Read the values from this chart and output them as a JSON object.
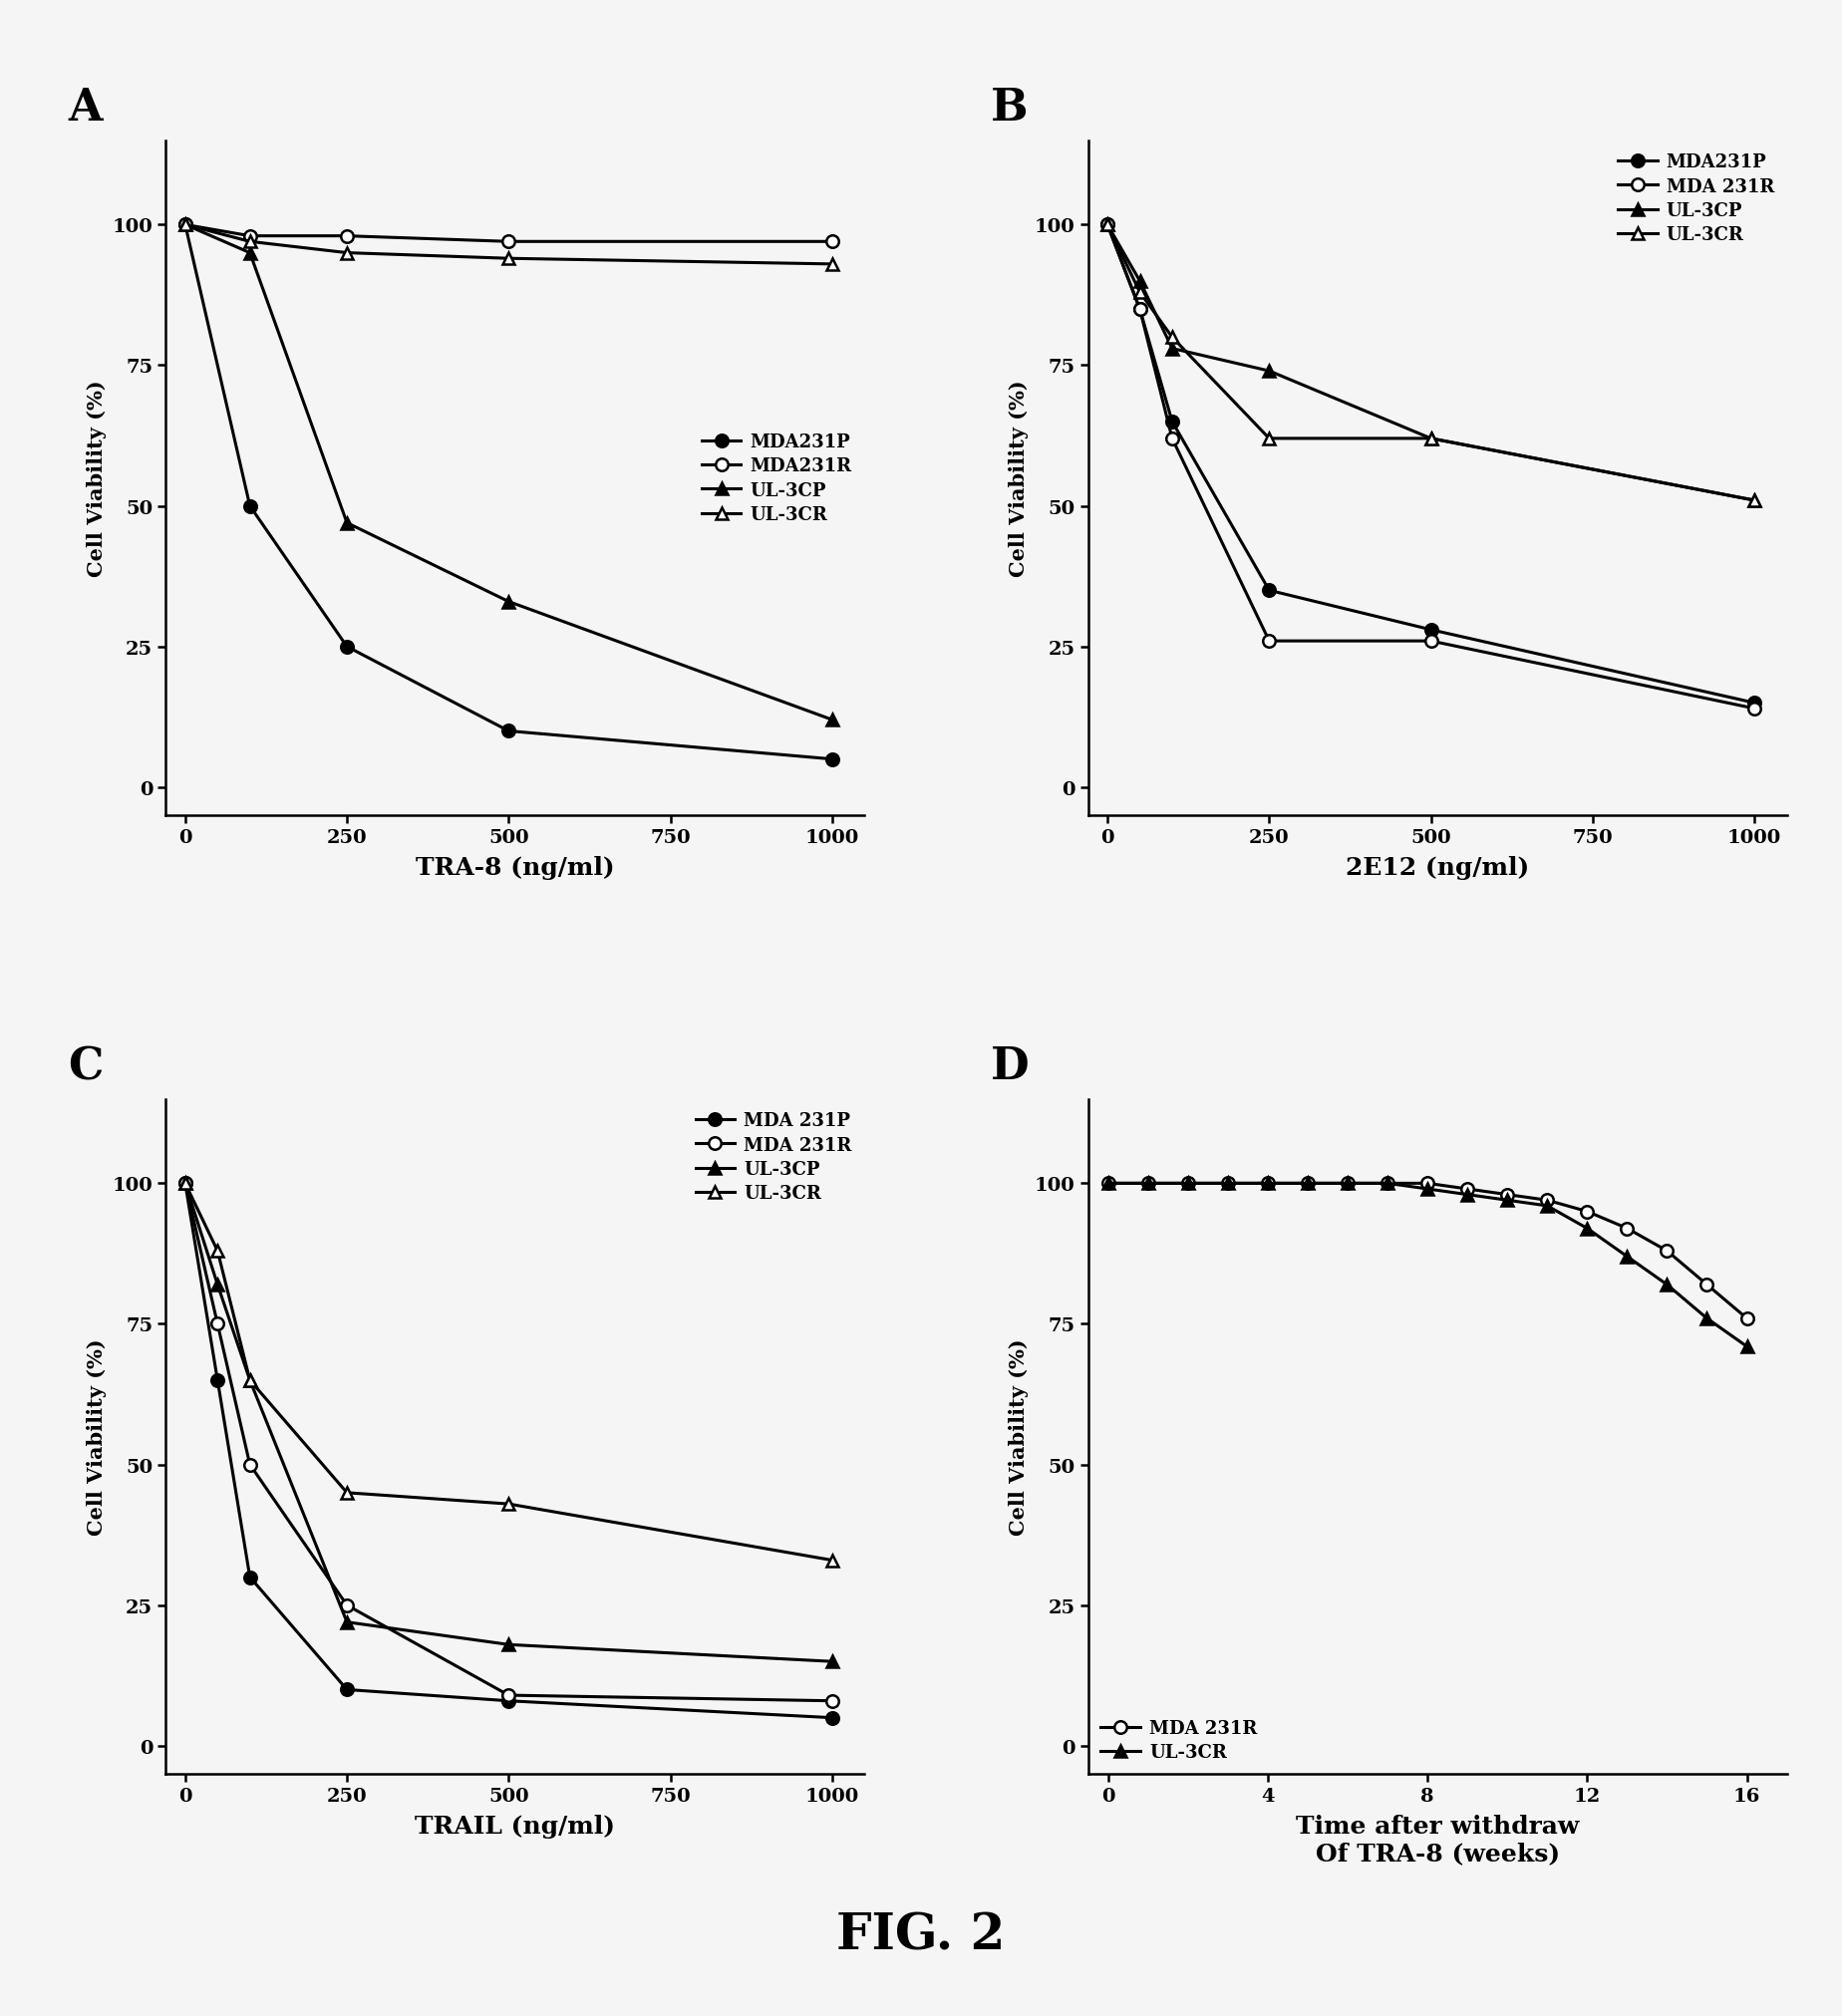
{
  "panel_A": {
    "label": "A",
    "xlabel": "TRA-8 (ng/ml)",
    "ylabel": "Cell Viability (%)",
    "xlim": [
      -30,
      1050
    ],
    "ylim": [
      -5,
      115
    ],
    "xticks": [
      0,
      250,
      500,
      750,
      1000
    ],
    "yticks": [
      0,
      25,
      50,
      75,
      100
    ],
    "series": {
      "MDA231P": {
        "x": [
          0,
          100,
          250,
          500,
          1000
        ],
        "y": [
          100,
          50,
          25,
          10,
          5
        ],
        "marker": "o",
        "filled": true
      },
      "MDA231R": {
        "x": [
          0,
          100,
          250,
          500,
          1000
        ],
        "y": [
          100,
          98,
          98,
          97,
          97
        ],
        "marker": "o",
        "filled": false
      },
      "UL-3CP": {
        "x": [
          0,
          100,
          250,
          500,
          1000
        ],
        "y": [
          100,
          95,
          47,
          33,
          12
        ],
        "marker": "^",
        "filled": true
      },
      "UL-3CR": {
        "x": [
          0,
          100,
          250,
          500,
          1000
        ],
        "y": [
          100,
          97,
          95,
          94,
          93
        ],
        "marker": "^",
        "filled": false
      }
    },
    "legend_labels": [
      "MDA231P",
      "MDA231R",
      "UL-3CP",
      "UL-3CR"
    ],
    "legend_loc": "center right",
    "legend_bbox": null
  },
  "panel_B": {
    "label": "B",
    "xlabel": "2E12 (ng/ml)",
    "ylabel": "Cell Viability (%)",
    "xlim": [
      -30,
      1050
    ],
    "ylim": [
      -5,
      115
    ],
    "xticks": [
      0,
      250,
      500,
      750,
      1000
    ],
    "yticks": [
      0,
      25,
      50,
      75,
      100
    ],
    "series": {
      "MDA231P": {
        "x": [
          0,
          50,
          100,
          250,
          500,
          1000
        ],
        "y": [
          100,
          85,
          65,
          35,
          28,
          15
        ],
        "marker": "o",
        "filled": true
      },
      "MDA 231R": {
        "x": [
          0,
          50,
          100,
          250,
          500,
          1000
        ],
        "y": [
          100,
          85,
          62,
          26,
          26,
          14
        ],
        "marker": "o",
        "filled": false
      },
      "UL-3CP": {
        "x": [
          0,
          50,
          100,
          250,
          500,
          1000
        ],
        "y": [
          100,
          90,
          78,
          74,
          62,
          51
        ],
        "marker": "^",
        "filled": true
      },
      "UL-3CR": {
        "x": [
          0,
          50,
          100,
          250,
          500,
          1000
        ],
        "y": [
          100,
          88,
          80,
          62,
          62,
          51
        ],
        "marker": "^",
        "filled": false
      }
    },
    "legend_labels": [
      "MDA231P",
      "MDA 231R",
      "UL-3CP",
      "UL-3CR"
    ],
    "legend_loc": "upper right",
    "legend_bbox": null
  },
  "panel_C": {
    "label": "C",
    "xlabel": "TRAIL (ng/ml)",
    "ylabel": "Cell Viability (%)",
    "xlim": [
      -30,
      1050
    ],
    "ylim": [
      -5,
      115
    ],
    "xticks": [
      0,
      250,
      500,
      750,
      1000
    ],
    "yticks": [
      0,
      25,
      50,
      75,
      100
    ],
    "series": {
      "MDA 231P": {
        "x": [
          0,
          50,
          100,
          250,
          500,
          1000
        ],
        "y": [
          100,
          65,
          30,
          10,
          8,
          5
        ],
        "marker": "o",
        "filled": true
      },
      "MDA 231R": {
        "x": [
          0,
          50,
          100,
          250,
          500,
          1000
        ],
        "y": [
          100,
          75,
          50,
          25,
          9,
          8
        ],
        "marker": "o",
        "filled": false
      },
      "UL-3CP": {
        "x": [
          0,
          50,
          100,
          250,
          500,
          1000
        ],
        "y": [
          100,
          82,
          65,
          22,
          18,
          15
        ],
        "marker": "^",
        "filled": true
      },
      "UL-3CR": {
        "x": [
          0,
          50,
          100,
          250,
          500,
          1000
        ],
        "y": [
          100,
          88,
          65,
          45,
          43,
          33
        ],
        "marker": "^",
        "filled": false
      }
    },
    "legend_labels": [
      "MDA 231P",
      "MDA 231R",
      "UL-3CP",
      "UL-3CR"
    ],
    "legend_loc": "upper right",
    "legend_bbox": null
  },
  "panel_D": {
    "label": "D",
    "xlabel": "Time after withdraw\nOf TRA-8 (weeks)",
    "ylabel": "Cell Viability (%)",
    "xlim": [
      -0.5,
      17
    ],
    "ylim": [
      -5,
      115
    ],
    "xticks": [
      0,
      4,
      8,
      12,
      16
    ],
    "yticks": [
      0,
      25,
      50,
      75,
      100
    ],
    "series": {
      "MDA 231R": {
        "x": [
          0,
          1,
          2,
          3,
          4,
          5,
          6,
          7,
          8,
          9,
          10,
          11,
          12,
          13,
          14,
          15,
          16
        ],
        "y": [
          100,
          100,
          100,
          100,
          100,
          100,
          100,
          100,
          100,
          99,
          98,
          97,
          95,
          92,
          88,
          82,
          76
        ],
        "marker": "o",
        "filled": false
      },
      "UL-3CR": {
        "x": [
          0,
          1,
          2,
          3,
          4,
          5,
          6,
          7,
          8,
          9,
          10,
          11,
          12,
          13,
          14,
          15,
          16
        ],
        "y": [
          100,
          100,
          100,
          100,
          100,
          100,
          100,
          100,
          99,
          98,
          97,
          96,
          92,
          87,
          82,
          76,
          71
        ],
        "marker": "^",
        "filled": true
      }
    },
    "legend_labels": [
      "MDA 231R",
      "UL-3CR"
    ],
    "legend_loc": "lower left",
    "legend_bbox": null
  },
  "figure_label": "FIG. 2",
  "bg_color": "#f5f5f5",
  "line_color": "#000000",
  "marker_size": 9,
  "line_width": 2.2,
  "label_fontsize": 22,
  "tick_fontsize": 14,
  "legend_fontsize": 13,
  "panel_label_fontsize": 32,
  "xlabel_fontsize": 18,
  "ylabel_fontsize": 15
}
